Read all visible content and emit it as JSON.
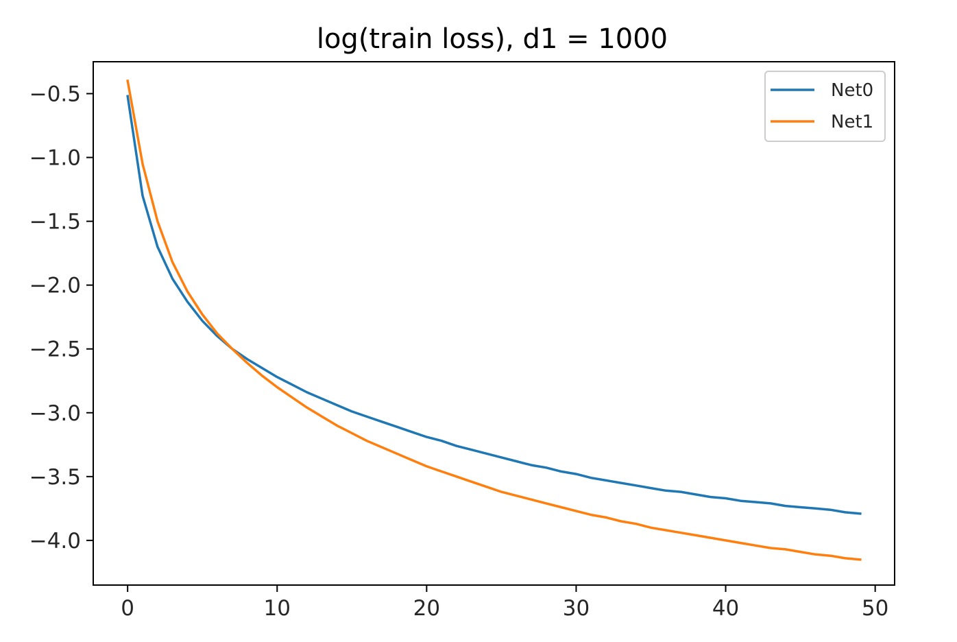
{
  "chart_data": {
    "type": "line",
    "title": "log(train loss), d1 = 1000",
    "xlabel": "",
    "ylabel": "",
    "xlim": [
      -2.3,
      51.3
    ],
    "ylim": [
      -4.35,
      -0.25
    ],
    "x_ticks": [
      0,
      10,
      20,
      30,
      40,
      50
    ],
    "y_ticks": [
      -0.5,
      -1.0,
      -1.5,
      -2.0,
      -2.5,
      -3.0,
      -3.5,
      -4.0
    ],
    "x_tick_labels": [
      "0",
      "10",
      "20",
      "30",
      "40",
      "50"
    ],
    "y_tick_labels": [
      "−0.5",
      "−1.0",
      "−1.5",
      "−2.0",
      "−2.5",
      "−3.0",
      "−3.5",
      "−4.0"
    ],
    "grid": false,
    "legend_position": "top-right",
    "x": [
      0,
      1,
      2,
      3,
      4,
      5,
      6,
      7,
      8,
      9,
      10,
      11,
      12,
      13,
      14,
      15,
      16,
      17,
      18,
      19,
      20,
      21,
      22,
      23,
      24,
      25,
      26,
      27,
      28,
      29,
      30,
      31,
      32,
      33,
      34,
      35,
      36,
      37,
      38,
      39,
      40,
      41,
      42,
      43,
      44,
      45,
      46,
      47,
      48,
      49
    ],
    "series": [
      {
        "name": "Net0",
        "color": "#1f77b4",
        "values": [
          -0.52,
          -1.3,
          -1.7,
          -1.95,
          -2.13,
          -2.28,
          -2.4,
          -2.5,
          -2.58,
          -2.65,
          -2.72,
          -2.78,
          -2.84,
          -2.89,
          -2.94,
          -2.99,
          -3.03,
          -3.07,
          -3.11,
          -3.15,
          -3.19,
          -3.22,
          -3.26,
          -3.29,
          -3.32,
          -3.35,
          -3.38,
          -3.41,
          -3.43,
          -3.46,
          -3.48,
          -3.51,
          -3.53,
          -3.55,
          -3.57,
          -3.59,
          -3.61,
          -3.62,
          -3.64,
          -3.66,
          -3.67,
          -3.69,
          -3.7,
          -3.71,
          -3.73,
          -3.74,
          -3.75,
          -3.76,
          -3.78,
          -3.79
        ]
      },
      {
        "name": "Net1",
        "color": "#ff7f0e",
        "values": [
          -0.4,
          -1.05,
          -1.5,
          -1.82,
          -2.05,
          -2.23,
          -2.38,
          -2.5,
          -2.61,
          -2.71,
          -2.8,
          -2.88,
          -2.96,
          -3.03,
          -3.1,
          -3.16,
          -3.22,
          -3.27,
          -3.32,
          -3.37,
          -3.42,
          -3.46,
          -3.5,
          -3.54,
          -3.58,
          -3.62,
          -3.65,
          -3.68,
          -3.71,
          -3.74,
          -3.77,
          -3.8,
          -3.82,
          -3.85,
          -3.87,
          -3.9,
          -3.92,
          -3.94,
          -3.96,
          -3.98,
          -4.0,
          -4.02,
          -4.04,
          -4.06,
          -4.07,
          -4.09,
          -4.11,
          -4.12,
          -4.14,
          -4.15
        ]
      }
    ]
  }
}
